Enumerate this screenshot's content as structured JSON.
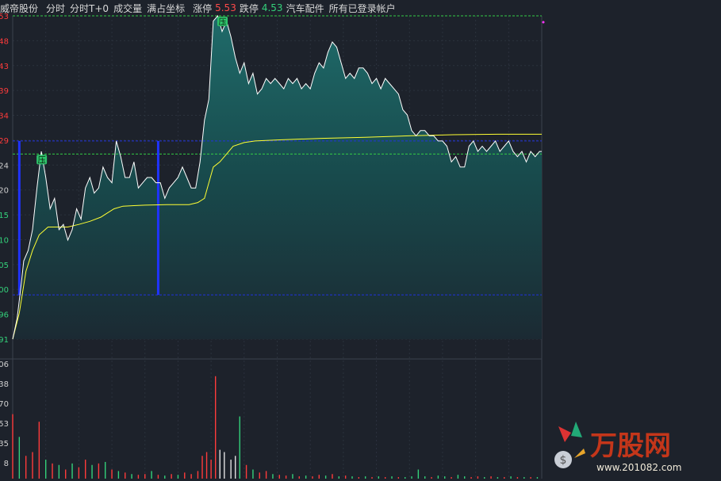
{
  "toolbar": {
    "stock_name": "威帝股份",
    "tab_fenshi": "分时",
    "tab_fenshi_t0": "分时T+0",
    "tab_volume": "成交量",
    "full_coord": "满占坐标",
    "limit_up_label": "涨停",
    "limit_up_value": "5.53",
    "limit_down_label": "跌停",
    "limit_down_value": "4.53",
    "sector": "汽车配件",
    "accounts": "所有已登录帐户"
  },
  "chart_data": {
    "type": "line",
    "price_axis_ticks": [
      "53",
      "48",
      "43",
      "39",
      "34",
      "29",
      "24",
      "20",
      "15",
      "10",
      "05",
      "00",
      "96",
      "91"
    ],
    "volume_axis_ticks": [
      "06",
      "38",
      "70",
      "53",
      "35",
      "8"
    ],
    "price_ylim": [
      4.91,
      5.53
    ],
    "x_range": [
      0,
      240
    ],
    "price": [
      [
        0,
        4.91
      ],
      [
        2,
        4.95
      ],
      [
        4,
        5.02
      ],
      [
        5,
        5.06
      ],
      [
        7,
        5.08
      ],
      [
        9,
        5.12
      ],
      [
        11,
        5.2
      ],
      [
        13,
        5.27
      ],
      [
        15,
        5.22
      ],
      [
        17,
        5.16
      ],
      [
        19,
        5.18
      ],
      [
        21,
        5.12
      ],
      [
        23,
        5.13
      ],
      [
        25,
        5.1
      ],
      [
        27,
        5.12
      ],
      [
        29,
        5.16
      ],
      [
        31,
        5.14
      ],
      [
        33,
        5.2
      ],
      [
        35,
        5.22
      ],
      [
        37,
        5.19
      ],
      [
        39,
        5.2
      ],
      [
        41,
        5.24
      ],
      [
        43,
        5.22
      ],
      [
        45,
        5.21
      ],
      [
        47,
        5.29
      ],
      [
        49,
        5.26
      ],
      [
        51,
        5.22
      ],
      [
        53,
        5.22
      ],
      [
        55,
        5.25
      ],
      [
        57,
        5.2
      ],
      [
        59,
        5.21
      ],
      [
        61,
        5.22
      ],
      [
        63,
        5.22
      ],
      [
        65,
        5.21
      ],
      [
        67,
        5.21
      ],
      [
        69,
        5.18
      ],
      [
        71,
        5.2
      ],
      [
        73,
        5.21
      ],
      [
        75,
        5.22
      ],
      [
        77,
        5.24
      ],
      [
        79,
        5.22
      ],
      [
        81,
        5.2
      ],
      [
        83,
        5.2
      ],
      [
        85,
        5.25
      ],
      [
        87,
        5.33
      ],
      [
        89,
        5.37
      ],
      [
        91,
        5.52
      ],
      [
        93,
        5.53
      ],
      [
        95,
        5.5
      ],
      [
        97,
        5.52
      ],
      [
        99,
        5.49
      ],
      [
        101,
        5.45
      ],
      [
        103,
        5.42
      ],
      [
        105,
        5.44
      ],
      [
        107,
        5.4
      ],
      [
        109,
        5.42
      ],
      [
        111,
        5.38
      ],
      [
        113,
        5.39
      ],
      [
        115,
        5.41
      ],
      [
        117,
        5.4
      ],
      [
        119,
        5.41
      ],
      [
        121,
        5.4
      ],
      [
        123,
        5.39
      ],
      [
        125,
        5.41
      ],
      [
        127,
        5.4
      ],
      [
        129,
        5.41
      ],
      [
        131,
        5.39
      ],
      [
        133,
        5.4
      ],
      [
        135,
        5.39
      ],
      [
        137,
        5.42
      ],
      [
        139,
        5.44
      ],
      [
        141,
        5.43
      ],
      [
        143,
        5.46
      ],
      [
        145,
        5.48
      ],
      [
        147,
        5.47
      ],
      [
        149,
        5.44
      ],
      [
        151,
        5.41
      ],
      [
        153,
        5.42
      ],
      [
        155,
        5.41
      ],
      [
        157,
        5.43
      ],
      [
        159,
        5.43
      ],
      [
        161,
        5.42
      ],
      [
        163,
        5.4
      ],
      [
        165,
        5.41
      ],
      [
        167,
        5.39
      ],
      [
        169,
        5.41
      ],
      [
        171,
        5.4
      ],
      [
        173,
        5.39
      ],
      [
        175,
        5.38
      ],
      [
        177,
        5.35
      ],
      [
        179,
        5.34
      ],
      [
        181,
        5.31
      ],
      [
        183,
        5.3
      ],
      [
        185,
        5.31
      ],
      [
        187,
        5.31
      ],
      [
        189,
        5.3
      ],
      [
        191,
        5.3
      ],
      [
        193,
        5.29
      ],
      [
        195,
        5.29
      ],
      [
        197,
        5.28
      ],
      [
        199,
        5.25
      ],
      [
        201,
        5.26
      ],
      [
        203,
        5.24
      ],
      [
        205,
        5.24
      ],
      [
        207,
        5.28
      ],
      [
        209,
        5.29
      ],
      [
        211,
        5.27
      ],
      [
        213,
        5.28
      ],
      [
        215,
        5.27
      ],
      [
        217,
        5.28
      ],
      [
        219,
        5.29
      ],
      [
        221,
        5.27
      ],
      [
        223,
        5.28
      ],
      [
        225,
        5.29
      ],
      [
        227,
        5.27
      ],
      [
        229,
        5.26
      ],
      [
        231,
        5.27
      ],
      [
        233,
        5.25
      ],
      [
        235,
        5.27
      ],
      [
        237,
        5.26
      ],
      [
        239,
        5.27
      ],
      [
        240,
        5.27
      ]
    ],
    "avg_price": [
      [
        0,
        4.91
      ],
      [
        3,
        4.96
      ],
      [
        6,
        5.04
      ],
      [
        9,
        5.08
      ],
      [
        12,
        5.11
      ],
      [
        16,
        5.125
      ],
      [
        20,
        5.125
      ],
      [
        25,
        5.125
      ],
      [
        30,
        5.13
      ],
      [
        35,
        5.136
      ],
      [
        40,
        5.144
      ],
      [
        43,
        5.152
      ],
      [
        46,
        5.16
      ],
      [
        50,
        5.165
      ],
      [
        55,
        5.166
      ],
      [
        60,
        5.167
      ],
      [
        70,
        5.168
      ],
      [
        80,
        5.168
      ],
      [
        84,
        5.172
      ],
      [
        87,
        5.18
      ],
      [
        89,
        5.21
      ],
      [
        91,
        5.24
      ],
      [
        94,
        5.25
      ],
      [
        97,
        5.265
      ],
      [
        100,
        5.28
      ],
      [
        105,
        5.287
      ],
      [
        110,
        5.29
      ],
      [
        120,
        5.292
      ],
      [
        140,
        5.295
      ],
      [
        160,
        5.297
      ],
      [
        180,
        5.3
      ],
      [
        200,
        5.302
      ],
      [
        220,
        5.303
      ],
      [
        240,
        5.303
      ]
    ],
    "volume": [
      [
        0,
        85,
        "r"
      ],
      [
        3,
        55,
        "g"
      ],
      [
        6,
        30,
        "r"
      ],
      [
        9,
        35,
        "r"
      ],
      [
        12,
        75,
        "r"
      ],
      [
        15,
        25,
        "g"
      ],
      [
        18,
        20,
        "r"
      ],
      [
        21,
        18,
        "g"
      ],
      [
        24,
        12,
        "r"
      ],
      [
        27,
        20,
        "g"
      ],
      [
        30,
        15,
        "r"
      ],
      [
        33,
        25,
        "r"
      ],
      [
        36,
        18,
        "g"
      ],
      [
        39,
        20,
        "r"
      ],
      [
        42,
        22,
        "g"
      ],
      [
        45,
        12,
        "r"
      ],
      [
        48,
        10,
        "g"
      ],
      [
        51,
        8,
        "r"
      ],
      [
        54,
        6,
        "g"
      ],
      [
        57,
        5,
        "r"
      ],
      [
        60,
        6,
        "r"
      ],
      [
        63,
        10,
        "g"
      ],
      [
        66,
        5,
        "r"
      ],
      [
        69,
        4,
        "g"
      ],
      [
        72,
        6,
        "r"
      ],
      [
        75,
        5,
        "g"
      ],
      [
        78,
        8,
        "r"
      ],
      [
        81,
        6,
        "r"
      ],
      [
        84,
        10,
        "r"
      ],
      [
        86,
        30,
        "r"
      ],
      [
        88,
        35,
        "r"
      ],
      [
        90,
        25,
        "r"
      ],
      [
        92,
        135,
        "r"
      ],
      [
        94,
        38,
        "w"
      ],
      [
        96,
        35,
        "w"
      ],
      [
        99,
        25,
        "w"
      ],
      [
        101,
        30,
        "w"
      ],
      [
        103,
        82,
        "g"
      ],
      [
        106,
        18,
        "r"
      ],
      [
        109,
        12,
        "g"
      ],
      [
        112,
        8,
        "r"
      ],
      [
        115,
        10,
        "r"
      ],
      [
        118,
        6,
        "g"
      ],
      [
        121,
        5,
        "r"
      ],
      [
        124,
        4,
        "r"
      ],
      [
        127,
        6,
        "g"
      ],
      [
        130,
        3,
        "r"
      ],
      [
        133,
        4,
        "g"
      ],
      [
        136,
        3,
        "r"
      ],
      [
        139,
        5,
        "r"
      ],
      [
        142,
        4,
        "g"
      ],
      [
        145,
        6,
        "r"
      ],
      [
        148,
        3,
        "g"
      ],
      [
        151,
        4,
        "r"
      ],
      [
        154,
        3,
        "g"
      ],
      [
        157,
        2,
        "r"
      ],
      [
        160,
        3,
        "g"
      ],
      [
        163,
        2,
        "r"
      ],
      [
        166,
        3,
        "g"
      ],
      [
        169,
        2,
        "r"
      ],
      [
        172,
        3,
        "g"
      ],
      [
        175,
        2,
        "r"
      ],
      [
        178,
        2,
        "g"
      ],
      [
        181,
        3,
        "g"
      ],
      [
        184,
        12,
        "g"
      ],
      [
        187,
        3,
        "g"
      ],
      [
        190,
        2,
        "r"
      ],
      [
        193,
        4,
        "g"
      ],
      [
        196,
        3,
        "g"
      ],
      [
        199,
        2,
        "r"
      ],
      [
        202,
        5,
        "g"
      ],
      [
        205,
        3,
        "g"
      ],
      [
        208,
        2,
        "r"
      ],
      [
        211,
        3,
        "r"
      ],
      [
        214,
        2,
        "g"
      ],
      [
        217,
        3,
        "r"
      ],
      [
        220,
        2,
        "g"
      ],
      [
        223,
        2,
        "r"
      ],
      [
        226,
        3,
        "g"
      ],
      [
        229,
        2,
        "r"
      ],
      [
        232,
        2,
        "g"
      ],
      [
        235,
        2,
        "r"
      ],
      [
        238,
        2,
        "g"
      ]
    ],
    "markers": [
      {
        "label": "压",
        "x": 13,
        "price": 5.265
      },
      {
        "label": "压",
        "x": 95,
        "price": 5.53
      }
    ],
    "grid": true,
    "colors": {
      "price_line": "#ffffff",
      "avg_line": "#ffff33",
      "area_top": "#1f6b6a",
      "up_tick": "#ff3b3b",
      "down_tick": "#33d17a",
      "marker_fill": "#2ec36b",
      "level_line": "#2233dd",
      "limit_line": "#33cc44"
    }
  },
  "logo": {
    "text": "万股网",
    "url_text": "www.201082.com"
  }
}
